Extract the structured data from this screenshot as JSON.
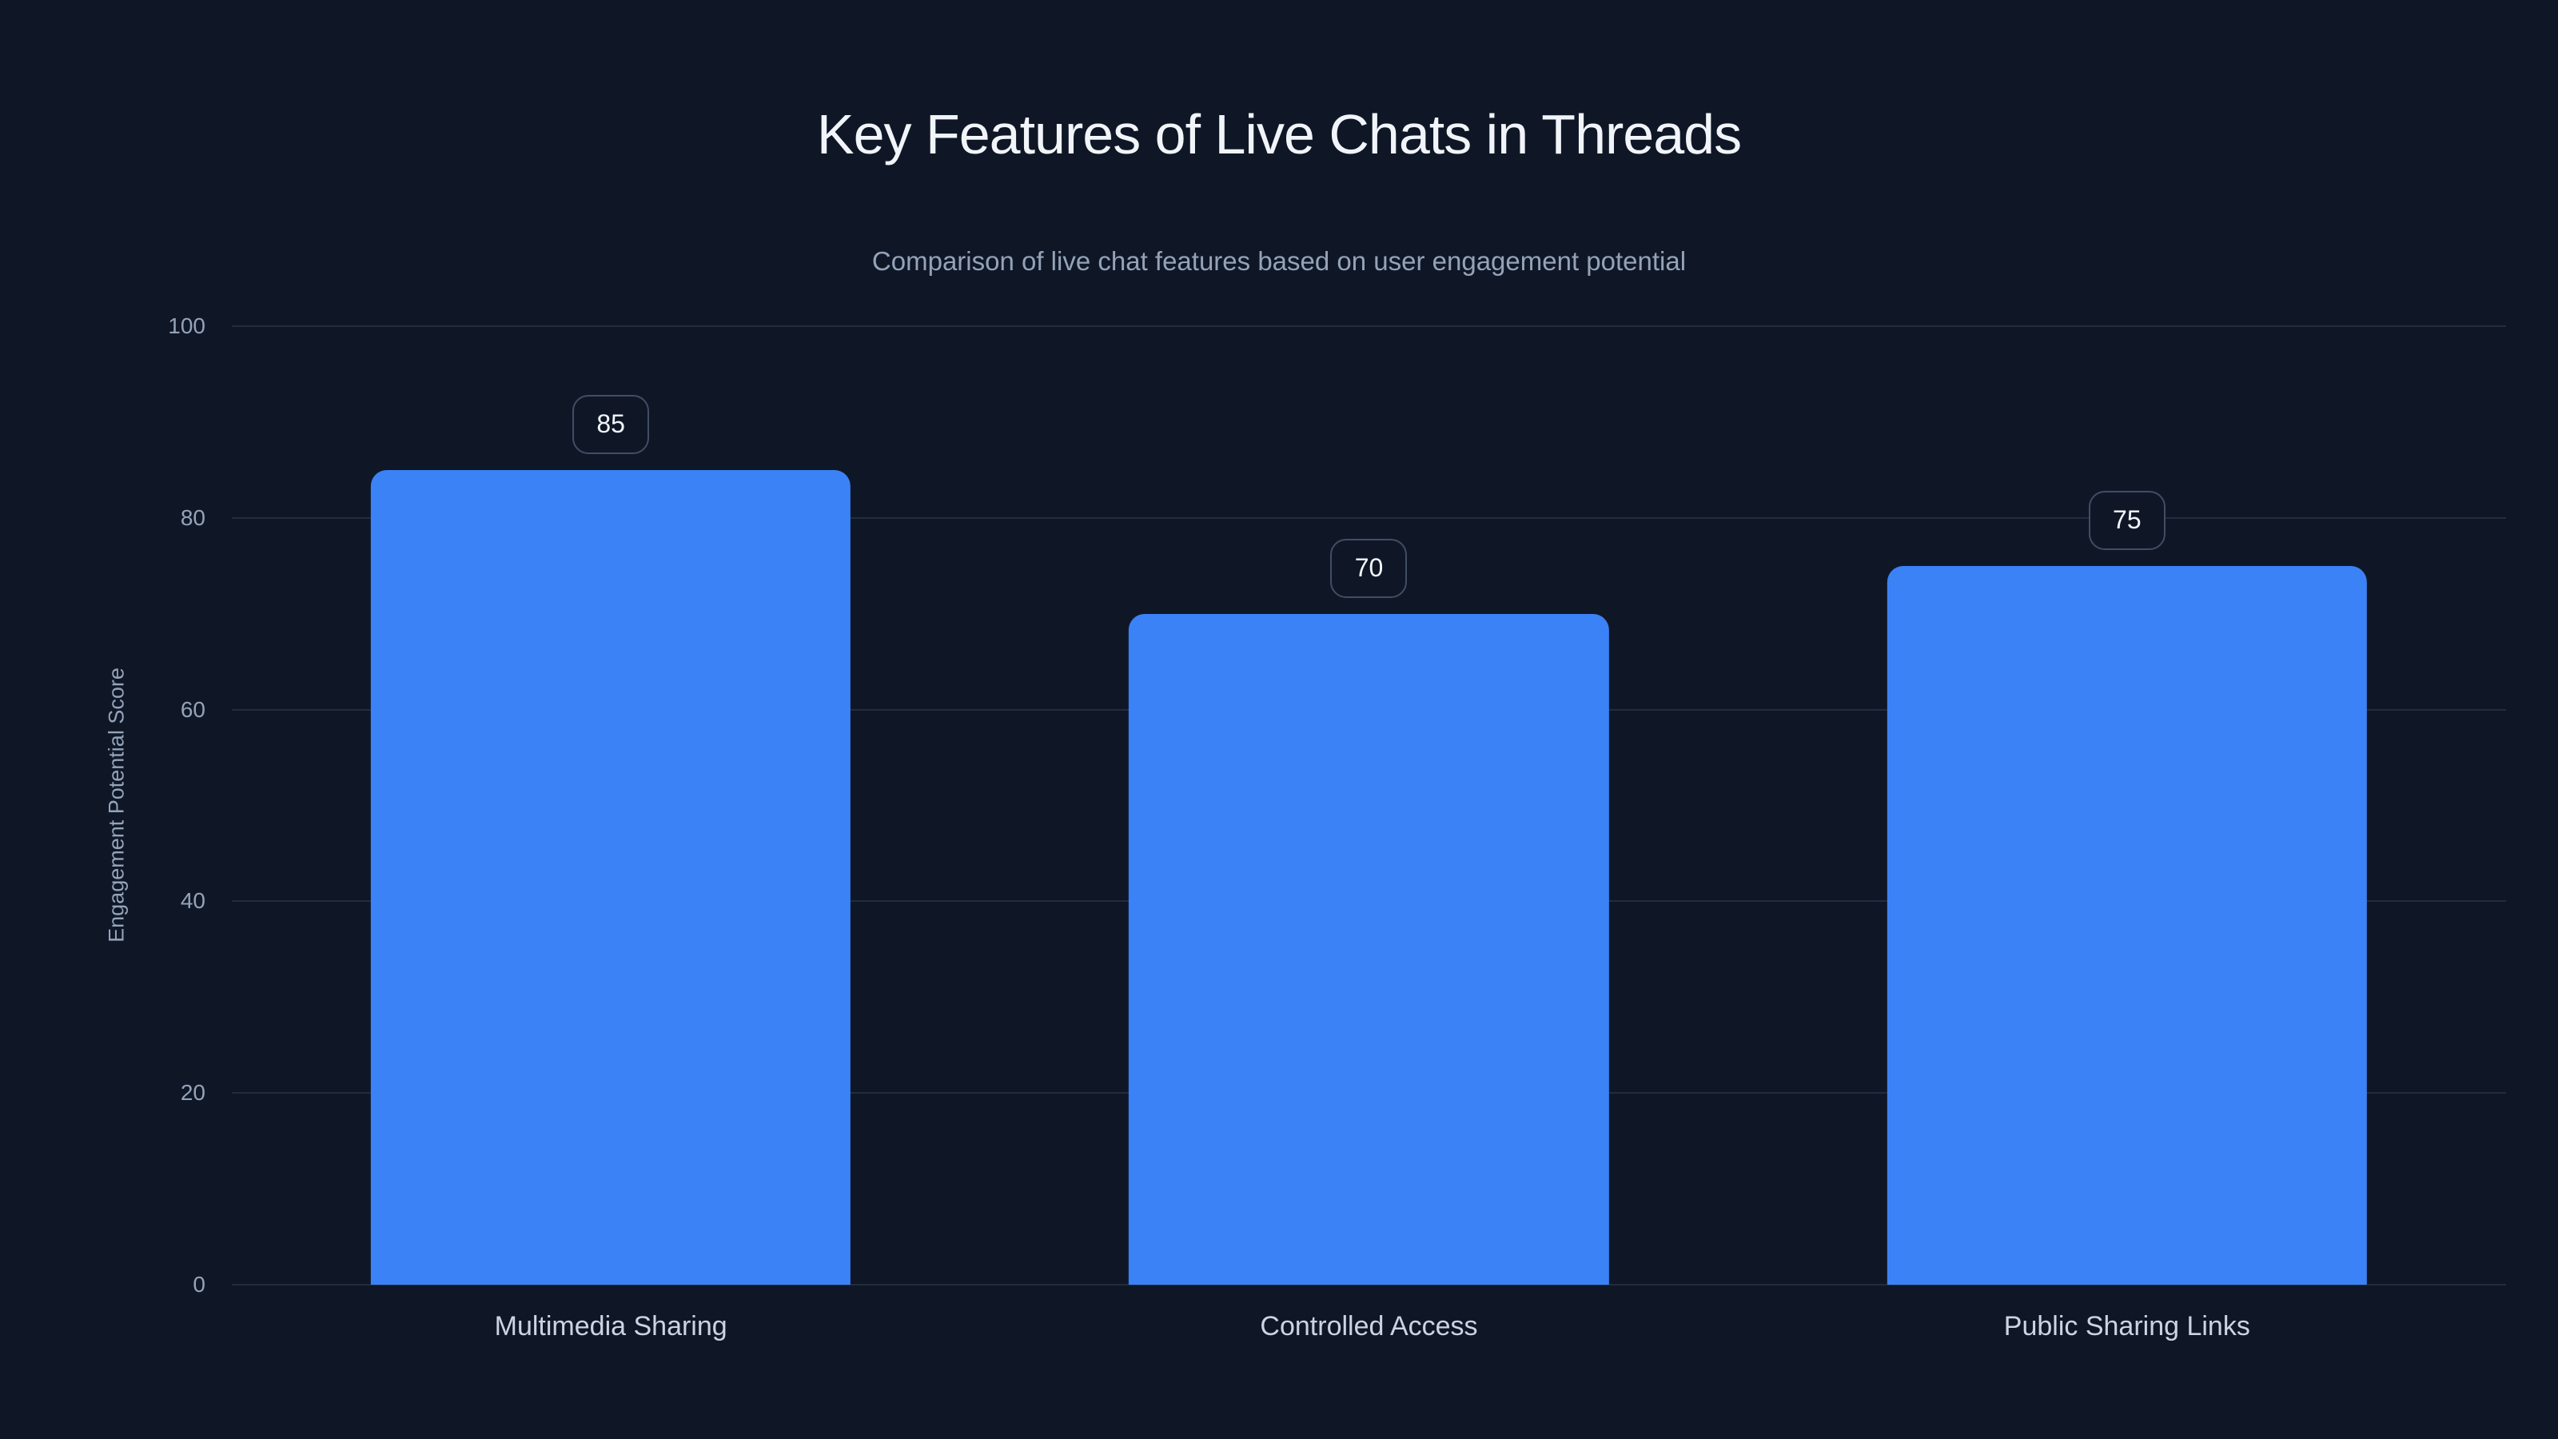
{
  "page": {
    "title": "Key Features of Live Chats in Threads",
    "subtitle": "Comparison of live chat features based on user engagement potential"
  },
  "colors": {
    "background": "#0f1727",
    "bar": "#3b82f6",
    "gridline": "#222c3e",
    "title_text": "#f1f5f9",
    "subtitle_text": "#94a3b8",
    "tick_text": "#94a3b8",
    "category_text": "#cbd5e1",
    "ylabel_text": "#94a3b8",
    "badge_border": "#414d63",
    "badge_text": "#f3f6fa"
  },
  "chart_data": {
    "type": "bar",
    "title": "Key Features of Live Chats in Threads",
    "subtitle": "Comparison of live chat features based on user engagement potential",
    "categories": [
      "Multimedia Sharing",
      "Controlled Access",
      "Public Sharing Links"
    ],
    "values": [
      85,
      70,
      75
    ],
    "bar_value_labels": [
      "85",
      "70",
      "75"
    ],
    "xlabel": "",
    "ylabel": "Engagement Potential Score",
    "ylim": [
      0,
      100
    ],
    "yticks": [
      0,
      20,
      40,
      60,
      80,
      100
    ],
    "grid": true,
    "legend": false,
    "legend_position": "none",
    "bar_color": "#3b82f6"
  }
}
